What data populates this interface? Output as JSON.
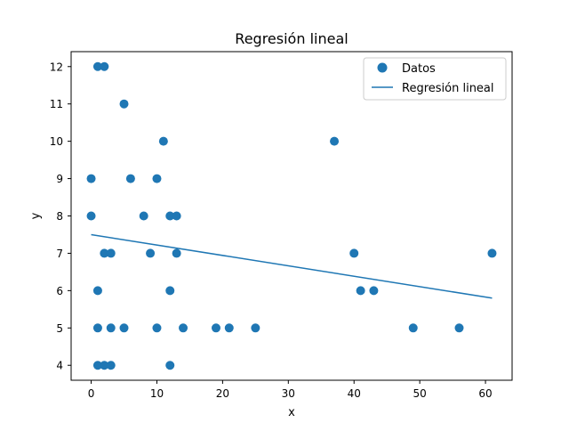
{
  "chart_data": {
    "type": "scatter",
    "title": "Regresión lineal",
    "xlabel": "x",
    "ylabel": "y",
    "xlim": [
      -3.05,
      64.05
    ],
    "ylim": [
      3.6,
      12.4
    ],
    "xticks": [
      0,
      10,
      20,
      30,
      40,
      50,
      60
    ],
    "yticks": [
      4,
      5,
      6,
      7,
      8,
      9,
      10,
      11,
      12
    ],
    "grid": false,
    "legend_position": "top-right",
    "series": [
      {
        "name": "Datos",
        "kind": "scatter",
        "color": "#1f77b4",
        "points": [
          [
            0,
            9
          ],
          [
            0,
            8
          ],
          [
            1,
            12
          ],
          [
            2,
            12
          ],
          [
            5,
            11
          ],
          [
            11,
            10
          ],
          [
            6,
            9
          ],
          [
            10,
            9
          ],
          [
            8,
            8
          ],
          [
            12,
            8
          ],
          [
            13,
            8
          ],
          [
            2,
            7
          ],
          [
            3,
            7
          ],
          [
            9,
            7
          ],
          [
            13,
            7
          ],
          [
            1,
            6
          ],
          [
            12,
            6
          ],
          [
            1,
            5
          ],
          [
            3,
            5
          ],
          [
            5,
            5
          ],
          [
            10,
            5
          ],
          [
            14,
            5
          ],
          [
            1,
            4
          ],
          [
            2,
            4
          ],
          [
            3,
            4
          ],
          [
            12,
            4
          ],
          [
            19,
            5
          ],
          [
            21,
            5
          ],
          [
            25,
            5
          ],
          [
            37,
            10
          ],
          [
            40,
            7
          ],
          [
            41,
            6
          ],
          [
            43,
            6
          ],
          [
            49,
            5
          ],
          [
            56,
            5
          ],
          [
            61,
            7
          ]
        ]
      },
      {
        "name": "Regresión lineal",
        "kind": "line",
        "color": "#1f77b4",
        "points": [
          [
            0,
            7.5
          ],
          [
            61,
            5.8
          ]
        ]
      }
    ]
  }
}
